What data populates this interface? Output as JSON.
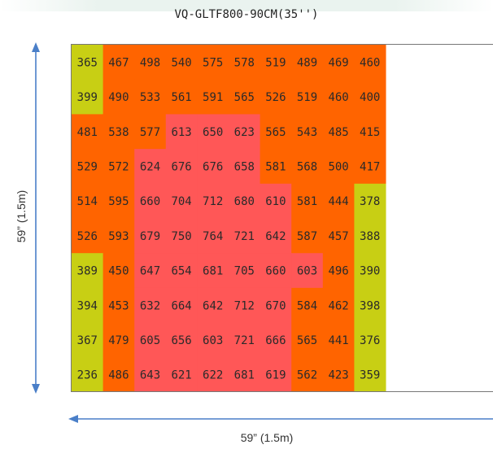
{
  "chart_data": {
    "type": "heatmap",
    "title": "VQ-GLTF800-90CM(35'')",
    "xlabel": "59” (1.5m)",
    "ylabel": "59” (1.5m)",
    "rows": [
      [
        365,
        467,
        498,
        540,
        575,
        578,
        519,
        489,
        469,
        460
      ],
      [
        399,
        490,
        533,
        561,
        591,
        565,
        526,
        519,
        460,
        400
      ],
      [
        481,
        538,
        577,
        613,
        650,
        623,
        565,
        543,
        485,
        415
      ],
      [
        529,
        572,
        624,
        676,
        676,
        658,
        581,
        568,
        500,
        417
      ],
      [
        514,
        595,
        660,
        704,
        712,
        680,
        610,
        581,
        444,
        378
      ],
      [
        526,
        593,
        679,
        750,
        764,
        721,
        642,
        587,
        457,
        388
      ],
      [
        389,
        450,
        647,
        654,
        681,
        705,
        660,
        603,
        496,
        390
      ],
      [
        394,
        453,
        632,
        664,
        642,
        712,
        670,
        584,
        462,
        398
      ],
      [
        367,
        479,
        605,
        656,
        603,
        721,
        666,
        565,
        441,
        376
      ],
      [
        236,
        486,
        643,
        621,
        622,
        681,
        619,
        562,
        423,
        359
      ]
    ],
    "colors": {
      "low": "#c8cf14",
      "mid": "#ff6400",
      "high": "#ff5757"
    },
    "legend": "none",
    "grid": false
  }
}
